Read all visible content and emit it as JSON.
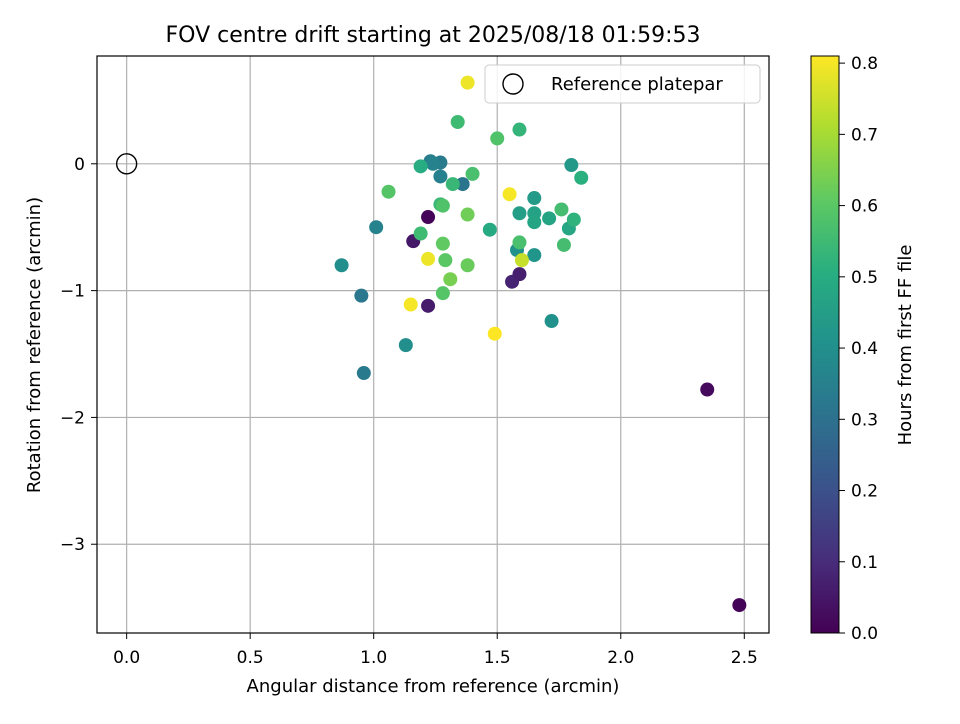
{
  "chart_data": {
    "type": "scatter",
    "title": "FOV centre drift starting at 2025/08/18 01:59:53",
    "xlabel": "Angular distance from reference (arcmin)",
    "ylabel": "Rotation from reference (arcmin)",
    "xlim": [
      -0.12,
      2.6
    ],
    "ylim": [
      -3.7,
      0.85
    ],
    "xticks": [
      0.0,
      0.5,
      1.0,
      1.5,
      2.0,
      2.5
    ],
    "xtick_labels": [
      "0.0",
      "0.5",
      "1.0",
      "1.5",
      "2.0",
      "2.5"
    ],
    "yticks": [
      0,
      -1,
      -2,
      -3
    ],
    "ytick_labels": [
      "0",
      "−1",
      "−2",
      "−3"
    ],
    "grid": true,
    "colormap": "viridis",
    "colorbar": {
      "label": "Hours from first FF file",
      "range": [
        0.0,
        0.81
      ],
      "ticks": [
        0.0,
        0.1,
        0.2,
        0.3,
        0.4,
        0.5,
        0.6,
        0.7,
        0.8
      ],
      "tick_labels": [
        "0.0",
        "0.1",
        "0.2",
        "0.3",
        "0.4",
        "0.5",
        "0.6",
        "0.7",
        "0.8"
      ]
    },
    "reference": {
      "x": 0.0,
      "y": 0.0
    },
    "legend": {
      "label": "Reference platepar",
      "position": "top-right"
    },
    "points": [
      {
        "x": 1.22,
        "y": -0.42,
        "c": 0.01
      },
      {
        "x": 1.16,
        "y": -0.61,
        "c": 0.05
      },
      {
        "x": 1.22,
        "y": -1.12,
        "c": 0.06
      },
      {
        "x": 1.56,
        "y": -0.93,
        "c": 0.08
      },
      {
        "x": 1.59,
        "y": -0.87,
        "c": 0.07
      },
      {
        "x": 2.35,
        "y": -1.78,
        "c": 0.02
      },
      {
        "x": 2.48,
        "y": -3.48,
        "c": 0.01
      },
      {
        "x": 0.95,
        "y": -1.04,
        "c": 0.32
      },
      {
        "x": 0.96,
        "y": -1.65,
        "c": 0.33
      },
      {
        "x": 1.36,
        "y": -0.16,
        "c": 0.31
      },
      {
        "x": 1.27,
        "y": 0.01,
        "c": 0.33
      },
      {
        "x": 1.23,
        "y": 0.02,
        "c": 0.34
      },
      {
        "x": 1.27,
        "y": -0.1,
        "c": 0.35
      },
      {
        "x": 1.24,
        "y": 0.0,
        "c": 0.36
      },
      {
        "x": 1.01,
        "y": -0.5,
        "c": 0.36
      },
      {
        "x": 0.87,
        "y": -0.8,
        "c": 0.4
      },
      {
        "x": 1.13,
        "y": -1.43,
        "c": 0.4
      },
      {
        "x": 1.72,
        "y": -1.24,
        "c": 0.41
      },
      {
        "x": 1.58,
        "y": -0.68,
        "c": 0.41
      },
      {
        "x": 1.65,
        "y": -0.72,
        "c": 0.42
      },
      {
        "x": 1.8,
        "y": -0.01,
        "c": 0.43
      },
      {
        "x": 1.65,
        "y": -0.27,
        "c": 0.44
      },
      {
        "x": 1.59,
        "y": -0.39,
        "c": 0.45
      },
      {
        "x": 1.65,
        "y": -0.39,
        "c": 0.46
      },
      {
        "x": 1.65,
        "y": -0.46,
        "c": 0.47
      },
      {
        "x": 1.71,
        "y": -0.43,
        "c": 0.47
      },
      {
        "x": 1.79,
        "y": -0.51,
        "c": 0.48
      },
      {
        "x": 1.47,
        "y": -0.52,
        "c": 0.49
      },
      {
        "x": 1.19,
        "y": -0.02,
        "c": 0.5
      },
      {
        "x": 1.84,
        "y": -0.11,
        "c": 0.51
      },
      {
        "x": 1.81,
        "y": -0.44,
        "c": 0.52
      },
      {
        "x": 1.59,
        "y": 0.27,
        "c": 0.53
      },
      {
        "x": 1.27,
        "y": -0.32,
        "c": 0.54
      },
      {
        "x": 1.32,
        "y": -0.16,
        "c": 0.54
      },
      {
        "x": 1.19,
        "y": -0.55,
        "c": 0.55
      },
      {
        "x": 1.34,
        "y": 0.33,
        "c": 0.55
      },
      {
        "x": 1.76,
        "y": -0.36,
        "c": 0.56
      },
      {
        "x": 1.77,
        "y": -0.64,
        "c": 0.56
      },
      {
        "x": 1.59,
        "y": -0.62,
        "c": 0.57
      },
      {
        "x": 1.4,
        "y": -0.08,
        "c": 0.57
      },
      {
        "x": 1.28,
        "y": -0.33,
        "c": 0.58
      },
      {
        "x": 1.5,
        "y": 0.2,
        "c": 0.58
      },
      {
        "x": 1.06,
        "y": -0.22,
        "c": 0.59
      },
      {
        "x": 1.28,
        "y": -1.02,
        "c": 0.59
      },
      {
        "x": 1.29,
        "y": -0.76,
        "c": 0.6
      },
      {
        "x": 1.28,
        "y": -0.63,
        "c": 0.61
      },
      {
        "x": 1.38,
        "y": -0.8,
        "c": 0.62
      },
      {
        "x": 1.38,
        "y": -0.4,
        "c": 0.63
      },
      {
        "x": 1.31,
        "y": -0.91,
        "c": 0.64
      },
      {
        "x": 1.6,
        "y": -0.76,
        "c": 0.74
      },
      {
        "x": 1.38,
        "y": 0.64,
        "c": 0.79
      },
      {
        "x": 1.22,
        "y": -0.75,
        "c": 0.79
      },
      {
        "x": 1.15,
        "y": -1.11,
        "c": 0.8
      },
      {
        "x": 1.55,
        "y": -0.24,
        "c": 0.8
      },
      {
        "x": 1.49,
        "y": -1.34,
        "c": 0.81
      }
    ]
  }
}
